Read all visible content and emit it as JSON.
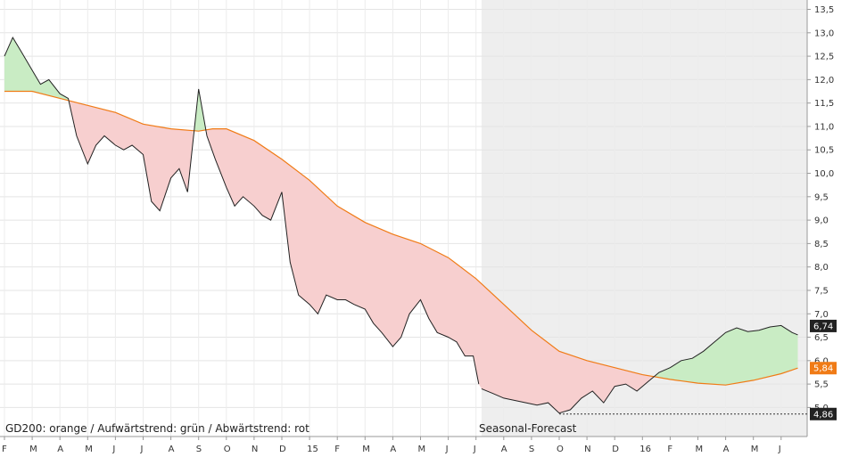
{
  "chart_data": {
    "type": "line",
    "title": "",
    "xlabel": "",
    "ylabel": "",
    "ylim": [
      4.38,
      13.7
    ],
    "y_ticks": [
      "13,5",
      "13,0",
      "12,5",
      "12,0",
      "11,5",
      "11,0",
      "10,5",
      "10,0",
      "9,5",
      "9,0",
      "8,5",
      "8,0",
      "7,5",
      "7,0",
      "6,5",
      "6,0",
      "5,5",
      "5,0"
    ],
    "y_tick_values": [
      13.5,
      13.0,
      12.5,
      12.0,
      11.5,
      11.0,
      10.5,
      10.0,
      9.5,
      9.0,
      8.5,
      8.0,
      7.5,
      7.0,
      6.5,
      6.0,
      5.5,
      5.0
    ],
    "x_ticks": [
      "F",
      "M",
      "A",
      "M",
      "J",
      "J",
      "A",
      "S",
      "O",
      "N",
      "D",
      "15",
      "F",
      "M",
      "A",
      "M",
      "J",
      "J",
      "A",
      "S",
      "O",
      "N",
      "D",
      "16",
      "F",
      "M",
      "A",
      "M",
      "J"
    ],
    "x_tick_month_index": [
      0,
      1,
      2,
      3,
      4,
      5,
      6,
      7,
      8,
      9,
      10,
      11,
      12,
      13,
      14,
      15,
      16,
      17,
      18,
      19,
      20,
      21,
      22,
      23,
      24,
      25,
      26,
      27,
      28
    ],
    "forecast_start_month": 17.2,
    "grid": true,
    "legend_text": "GD200: orange / Aufwärtstrend: grün / Abwärtstrend: rot",
    "forecast_label": "Seasonal-Forecast",
    "price_labels": [
      {
        "text": "6,74",
        "value": 6.74,
        "color": "#222222"
      },
      {
        "text": "5,84",
        "value": 5.84,
        "color": "#f07b16"
      },
      {
        "text": "4,86",
        "value": 4.86,
        "color": "#222222"
      }
    ],
    "series": [
      {
        "kind": "price",
        "x": [
          0,
          0.3,
          0.6,
          1.0,
          1.3,
          1.6,
          2.0,
          2.3,
          2.6,
          3.0,
          3.3,
          3.6,
          4.0,
          4.3,
          4.6,
          5.0,
          5.3,
          5.6,
          6.0,
          6.3,
          6.6,
          7.0,
          7.3,
          7.6,
          8.0,
          8.3,
          8.6,
          9.0,
          9.3,
          9.6,
          10.0,
          10.3,
          10.6,
          11.0,
          11.3,
          11.6,
          12.0,
          12.3,
          12.6,
          13.0,
          13.3,
          13.6,
          14.0,
          14.3,
          14.6,
          15.0,
          15.3,
          15.6,
          16.0,
          16.3,
          16.6,
          16.9,
          17.1
        ],
        "y": [
          12.5,
          12.9,
          12.6,
          12.2,
          11.9,
          12.0,
          11.7,
          11.6,
          10.8,
          10.2,
          10.6,
          10.8,
          10.6,
          10.5,
          10.6,
          10.4,
          9.4,
          9.2,
          9.9,
          10.1,
          9.6,
          11.8,
          10.8,
          10.3,
          9.7,
          9.3,
          9.5,
          9.3,
          9.1,
          9.0,
          9.6,
          8.1,
          7.4,
          7.2,
          7.0,
          7.4,
          7.3,
          7.3,
          7.2,
          7.1,
          6.8,
          6.6,
          6.3,
          6.5,
          7.0,
          7.3,
          6.9,
          6.6,
          6.5,
          6.4,
          6.1,
          6.1,
          5.5
        ]
      },
      {
        "kind": "forecast",
        "x": [
          17.2,
          17.6,
          18.0,
          18.4,
          18.8,
          19.2,
          19.6,
          20.0,
          20.4,
          20.8,
          21.2,
          21.6,
          22.0,
          22.4,
          22.8,
          23.2,
          23.6,
          24.0,
          24.4,
          24.8,
          25.2,
          25.6,
          26.0,
          26.4,
          26.8,
          27.2,
          27.6,
          28.0,
          28.4,
          28.6
        ],
        "y": [
          5.4,
          5.3,
          5.2,
          5.15,
          5.1,
          5.05,
          5.1,
          4.88,
          4.95,
          5.2,
          5.35,
          5.1,
          5.45,
          5.5,
          5.35,
          5.55,
          5.75,
          5.85,
          6.0,
          6.05,
          6.2,
          6.4,
          6.6,
          6.7,
          6.62,
          6.65,
          6.72,
          6.75,
          6.6,
          6.55
        ]
      },
      {
        "kind": "GD200",
        "x": [
          0,
          1,
          2,
          3,
          4,
          5,
          6,
          7,
          7.5,
          8,
          9,
          10,
          11,
          12,
          13,
          14,
          15,
          16,
          17,
          18,
          19,
          20,
          21,
          22,
          23,
          24,
          25,
          26,
          27,
          28,
          28.6
        ],
        "y": [
          11.75,
          11.75,
          11.6,
          11.45,
          11.3,
          11.05,
          10.95,
          10.9,
          10.95,
          10.95,
          10.7,
          10.3,
          9.85,
          9.3,
          8.95,
          8.7,
          8.5,
          8.2,
          7.75,
          7.2,
          6.65,
          6.2,
          6.0,
          5.85,
          5.7,
          5.6,
          5.52,
          5.48,
          5.58,
          5.72,
          5.84
        ]
      }
    ]
  }
}
